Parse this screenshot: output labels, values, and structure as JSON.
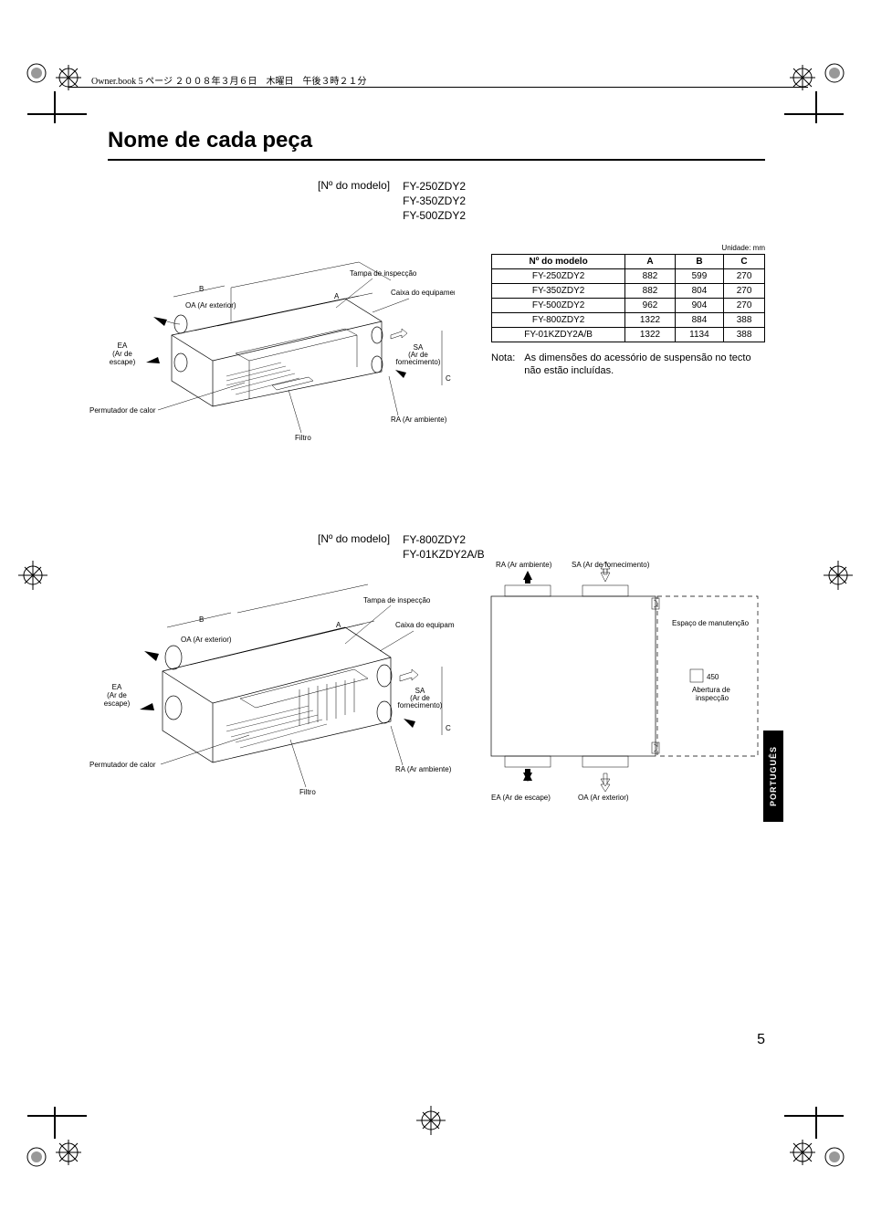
{
  "header_text": "Owner.book  5 ページ  ２００８年３月６日　木曜日　午後３時２１分",
  "title": "Nome de cada peça",
  "model_label": "[Nº do modelo]",
  "models_group1": [
    "FY-250ZDY2",
    "FY-350ZDY2",
    "FY-500ZDY2"
  ],
  "models_group2": [
    "FY-800ZDY2",
    "FY-01KZDY2A/B"
  ],
  "diagram_labels": {
    "tampa": "Tampa de inspecção",
    "caixa": "Caixa do equipamento eléctrico",
    "oa": "OA (Ar exterior)",
    "ea1": "EA",
    "ea2": "(Ar de",
    "ea3": "escape)",
    "sa1": "SA",
    "sa2": "(Ar de",
    "sa3": "fornecimento)",
    "ra": "RA (Ar ambiente)",
    "filtro": "Filtro",
    "permutador": "Permutador de calor",
    "espaco": "Espaço de manutenção",
    "abertura1": "Abertura de",
    "abertura2": "inspecção",
    "n450": "450",
    "ra_full": "RA (Ar ambiente)",
    "sa_full": "SA (Ar de fornecimento)",
    "ea_full": "EA (Ar de escape)",
    "oa_full": "OA (Ar exterior)"
  },
  "unit_label": "Unidade: mm",
  "table": {
    "headers": [
      "Nº do modelo",
      "A",
      "B",
      "C"
    ],
    "rows": [
      [
        "FY-250ZDY2",
        "882",
        "599",
        "270"
      ],
      [
        "FY-350ZDY2",
        "882",
        "804",
        "270"
      ],
      [
        "FY-500ZDY2",
        "962",
        "904",
        "270"
      ],
      [
        "FY-800ZDY2",
        "1322",
        "884",
        "388"
      ],
      [
        "FY-01KZDY2A/B",
        "1322",
        "1134",
        "388"
      ]
    ]
  },
  "note_label": "Nota:",
  "note_text": "As dimensões do acessório de suspensão no tecto não estão incluídas.",
  "lang_tab": "PORTUGUÊS",
  "page_number": "5"
}
